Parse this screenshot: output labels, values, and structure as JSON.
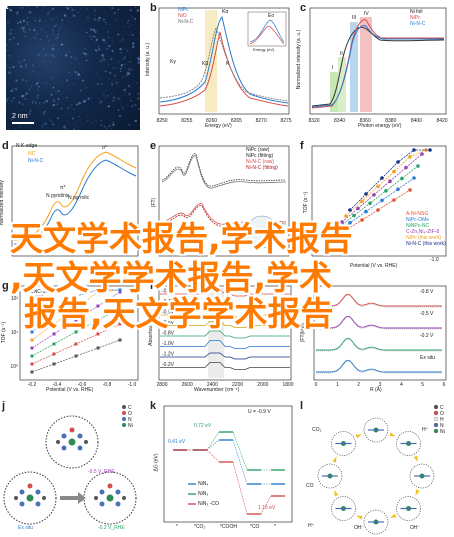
{
  "panels": {
    "a": {
      "label": "a",
      "scalebar": "2 nm",
      "background": "#0d1b33"
    },
    "b": {
      "label": "b",
      "xlabel": "Energy (eV)",
      "ylabel": "Intensity (a. u.)",
      "legend": [
        "NiPc",
        "NiO",
        "Ni-N-C"
      ],
      "xticks": [
        "8250",
        "8255",
        "8260",
        "8265",
        "8270",
        "8275"
      ],
      "annotations": [
        "Kα",
        "Kβ",
        "Kγ",
        "K",
        "Eo"
      ],
      "inset_xlabel": "Energy (eV)"
    },
    "c": {
      "label": "c",
      "xlabel": "Photon energy (eV)",
      "ylabel": "Normalized intensity (a. u.)",
      "legend": [
        "Ni foil",
        "NiPc",
        "Ni-N-C"
      ],
      "xticks": [
        "8320",
        "8340",
        "8360",
        "8380",
        "8400",
        "8420"
      ],
      "annotations": [
        "I",
        "II",
        "III",
        "IV"
      ]
    },
    "d": {
      "label": "d",
      "title": "N K-edge",
      "legend": [
        "NC",
        "Ni-N-C"
      ],
      "ylabel": "Normalized intensity",
      "annotations": [
        "σ*",
        "π*",
        "N pyridinic",
        "N pyrrolic"
      ]
    },
    "e": {
      "label": "e",
      "legend": [
        "NiPc (raw)",
        "NiPc (fitting)",
        "Ni-N-C (raw)",
        "Ni-N-C (fitting)"
      ],
      "ylabel": "|FT|"
    },
    "f": {
      "label": "f",
      "ylabel": "TOF (s⁻¹)",
      "xlabel": "Potential (V vs. RHE)",
      "xticks": [
        "-1.0"
      ],
      "legend": [
        "A-Ni-NSG",
        "NiPc-OMe",
        "NiNPs-NC",
        "C-Zn₁Ni₄-ZIF-8",
        "NiPc (this work)",
        "Ni-N-C (this work)"
      ]
    },
    "g": {
      "label": "g",
      "ylabel": "TOF (s⁻¹)",
      "xlabel": "Potential (V vs. RHE)",
      "xticks": [
        "-0.2",
        "-0.4",
        "-0.6",
        "-0.8",
        "-1.0"
      ],
      "yticks": [
        "10²",
        "10¹",
        "10⁰"
      ],
      "legend": [
        "CNC-1000",
        "Ni-NC",
        "Ni-SA",
        "Ni-NGR",
        "NiPc",
        "Ni-N-C"
      ]
    },
    "h": {
      "label": "h",
      "xlabel": "Wavenumber (cm⁻¹)",
      "ylabel": "Absorbance",
      "xticks": [
        "2800",
        "2600",
        "2400",
        "2200",
        "2000",
        "1800"
      ],
      "traces": [
        "-0.2V",
        "-0.4V",
        "-0.5V",
        "-0.6V",
        "-0.8V",
        "-1.0V",
        "-1.2V",
        "-0.2V"
      ]
    },
    "i": {
      "label": "i",
      "xlabel": "R (Å)",
      "ylabel": "|FT(k³χ)|",
      "xticks": [
        "0",
        "1",
        "2",
        "3",
        "4",
        "5",
        "6"
      ],
      "traces": [
        "-0.8 V",
        "-0.5 V",
        "-0.2 V",
        "Ex situ"
      ]
    },
    "j": {
      "label": "j",
      "states": [
        "Ex situ",
        "-0.5 V_RHE",
        "-0.2 V_RHE"
      ],
      "legend": [
        "C",
        "O",
        "N",
        "Ni"
      ]
    },
    "k": {
      "label": "k",
      "ylabel": "ΔG (eV)",
      "title": "U = -0.9 V",
      "xticks": [
        "*",
        "*CO₂",
        "*COOH",
        "*CO",
        "*"
      ],
      "series": [
        "NiN₄",
        "NiN₃",
        "NiN₃ -CO"
      ],
      "energies": [
        "0.41 eV",
        "0.72 eV",
        "1.15 eV"
      ]
    },
    "l": {
      "label": "l",
      "species": [
        "CO₂",
        "H⁺",
        "CO",
        "H⁺",
        "OH⁻",
        "OH⁻"
      ],
      "legend": [
        "C",
        "O",
        "H",
        "N",
        "Ni"
      ]
    }
  },
  "overlay": {
    "line1": "天文学术报告,学术报告",
    "line2": ",天文学学术报告,学术",
    "line3": "报告,天文学学术报告",
    "color": "#ff7a00"
  }
}
